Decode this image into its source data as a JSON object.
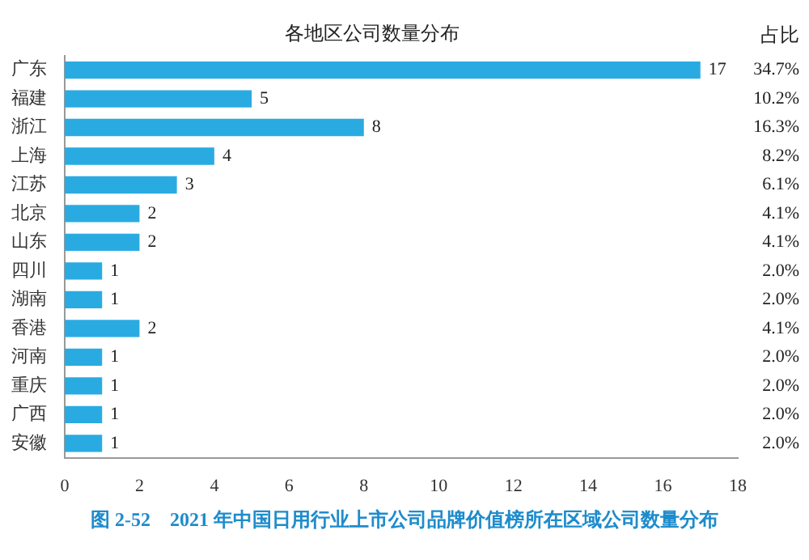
{
  "chart_data": {
    "type": "bar",
    "orientation": "horizontal",
    "title": "各地区公司数量分布",
    "categories": [
      "广东",
      "福建",
      "浙江",
      "上海",
      "江苏",
      "北京",
      "山东",
      "四川",
      "湖南",
      "香港",
      "河南",
      "重庆",
      "广西",
      "安徽"
    ],
    "values": [
      17,
      5,
      8,
      4,
      3,
      2,
      2,
      1,
      1,
      2,
      1,
      1,
      1,
      1
    ],
    "color": "#29abe2",
    "data_labels": true,
    "grid": false,
    "legend": false,
    "xlim": [
      0,
      18
    ],
    "xticks": [
      0,
      2,
      4,
      6,
      8,
      10,
      12,
      14,
      16,
      18
    ],
    "annotations": [
      "占比",
      "34.7%",
      "10.2%",
      "16.3%",
      "8.2%",
      "6.1%",
      "4.1%",
      "4.1%",
      "2.0%",
      "2.0%",
      "4.1%",
      "2.0%",
      "2.0%",
      "2.0%",
      "2.0%",
      "图 2-52　2021 年中国日用行业上市公司品牌价值榜所在区域公司数量分布"
    ]
  }
}
